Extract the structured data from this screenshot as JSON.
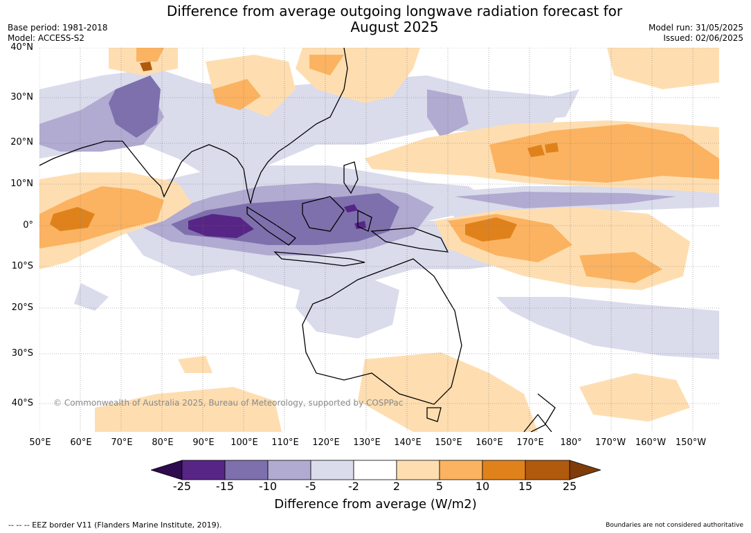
{
  "title_line1": "Difference from average outgoing longwave radiation forecast for",
  "title_line2": "August 2025",
  "meta_left": {
    "base_period": "Base period: 1981-2018",
    "model": "Model: ACCESS-S2"
  },
  "meta_right": {
    "model_run": "Model run: 31/05/2025",
    "issued": "Issued: 02/06/2025"
  },
  "lat_labels": [
    "40°N",
    "30°N",
    "20°N",
    "10°N",
    "0°",
    "10°S",
    "20°S",
    "30°S",
    "40°S"
  ],
  "lon_labels": [
    "50°E",
    "60°E",
    "70°E",
    "80°E",
    "90°E",
    "100°E",
    "110°E",
    "120°E",
    "130°E",
    "140°E",
    "150°E",
    "160°E",
    "170°E",
    "180°",
    "170°W",
    "160°W",
    "150°W"
  ],
  "copyright": "© Commonwealth of Australia 2025, Bureau of Meteorology, supported by COSPPac",
  "colorbar": {
    "ticks": [
      "-25",
      "-15",
      "-10",
      "-5",
      "-2",
      "2",
      "5",
      "10",
      "15",
      "25"
    ],
    "colors": [
      "#2e0a4e",
      "#572585",
      "#7e70ad",
      "#b1aad1",
      "#dadbeb",
      "#ffffff",
      "#fedeb1",
      "#fbb361",
      "#e0821c",
      "#b05a0d",
      "#7f3b08"
    ],
    "title": "Difference from average (W/m2)"
  },
  "footer_left": "-- -- -- EEZ border V11 (Flanders Marine Institute, 2019).",
  "footer_right": "Boundaries are not considered authoritative"
}
